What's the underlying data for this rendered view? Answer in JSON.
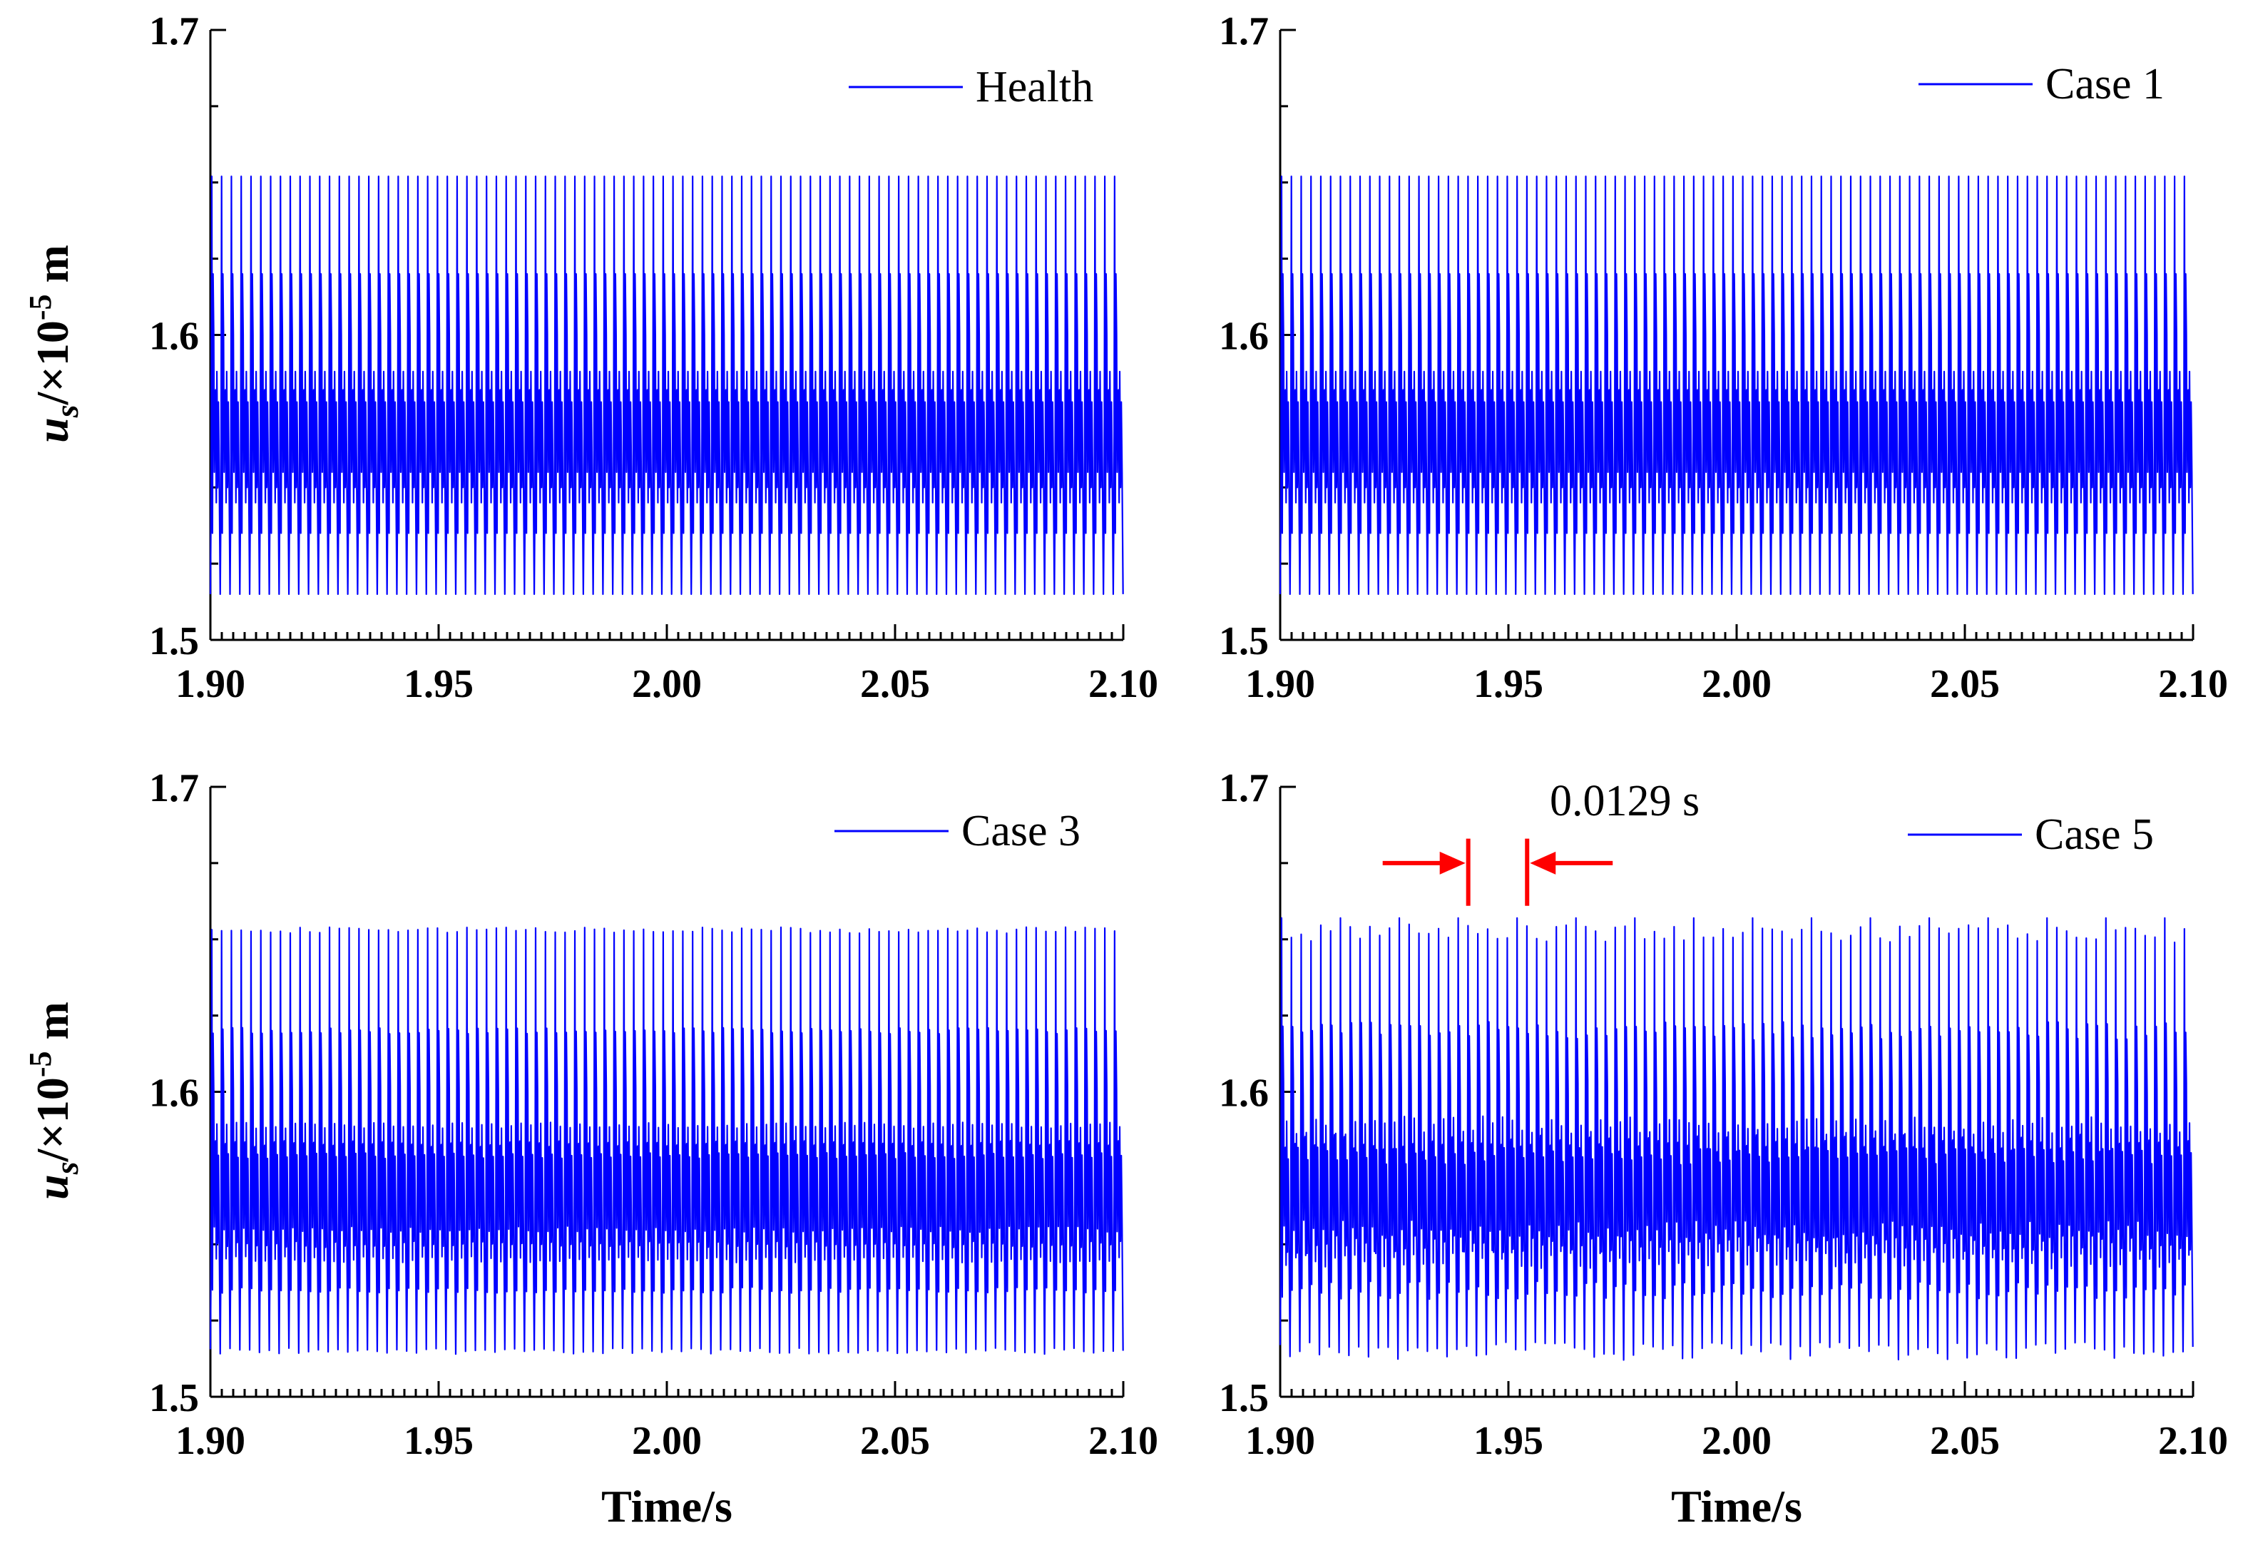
{
  "colors": {
    "series": "#0000ff",
    "annotation": "#ff0000",
    "axis": "#000000"
  },
  "chart_data": [
    {
      "type": "line",
      "panel": "top-left",
      "legend": "Health",
      "legend_position": "top-right",
      "ylabel_main": "u",
      "ylabel_sub": "s",
      "ylabel_mid": "/×10",
      "ylabel_sup": "-5",
      "ylabel_unit": " m",
      "xlabel": "",
      "xlim": [
        1.9,
        2.1
      ],
      "ylim": [
        1.5,
        1.7
      ],
      "xticks": [
        "1.90",
        "1.95",
        "2.00",
        "2.05",
        "2.10"
      ],
      "yticks": [
        "1.5",
        "1.6",
        "1.7"
      ],
      "series": [
        {
          "name": "Health",
          "period": 0.00215,
          "min": 1.515,
          "max": 1.652,
          "mean": 1.578,
          "secondary_peak": 1.62,
          "jitter": 0
        }
      ]
    },
    {
      "type": "line",
      "panel": "top-right",
      "legend": "Case 1",
      "legend_position": "top-right",
      "xlabel": "",
      "xlim": [
        1.9,
        2.1
      ],
      "ylim": [
        1.5,
        1.7
      ],
      "xticks": [
        "1.90",
        "1.95",
        "2.00",
        "2.05",
        "2.10"
      ],
      "yticks": [
        "1.5",
        "1.6",
        "1.7"
      ],
      "series": [
        {
          "name": "Case 1",
          "period": 0.00215,
          "min": 1.515,
          "max": 1.652,
          "mean": 1.578,
          "secondary_peak": 1.62,
          "jitter": 0
        }
      ]
    },
    {
      "type": "line",
      "panel": "bottom-left",
      "legend": "Case 3",
      "legend_position": "top-right",
      "ylabel_main": "u",
      "ylabel_sub": "s",
      "ylabel_mid": "/×10",
      "ylabel_sup": "-5",
      "ylabel_unit": " m",
      "xlabel": "Time/s",
      "xlim": [
        1.9,
        2.1
      ],
      "ylim": [
        1.5,
        1.7
      ],
      "xticks": [
        "1.90",
        "1.95",
        "2.00",
        "2.05",
        "2.10"
      ],
      "yticks": [
        "1.5",
        "1.6",
        "1.7"
      ],
      "series": [
        {
          "name": "Case 3",
          "period": 0.00215,
          "min": 1.515,
          "max": 1.653,
          "mean": 1.579,
          "secondary_peak": 1.62,
          "jitter": 0.001
        }
      ]
    },
    {
      "type": "line",
      "panel": "bottom-right",
      "legend": "Case 5",
      "legend_position": "top-right",
      "xlabel": "Time/s",
      "xlim": [
        1.9,
        2.1
      ],
      "ylim": [
        1.5,
        1.7
      ],
      "xticks": [
        "1.90",
        "1.95",
        "2.00",
        "2.05",
        "2.10"
      ],
      "yticks": [
        "1.5",
        "1.6",
        "1.7"
      ],
      "annotation": {
        "text": "0.0129 s",
        "x1": 1.9412,
        "x2": 1.9541,
        "y_arrow": 1.675,
        "y_bar_top": 1.683,
        "y_bar_bottom": 1.661
      },
      "series": [
        {
          "name": "Case 5",
          "period": 0.00215,
          "min": 1.515,
          "max": 1.652,
          "mean": 1.579,
          "secondary_peak": 1.62,
          "jitter": 0.003,
          "fault_period": 0.0129,
          "fault_peak": 1.657
        }
      ]
    }
  ]
}
